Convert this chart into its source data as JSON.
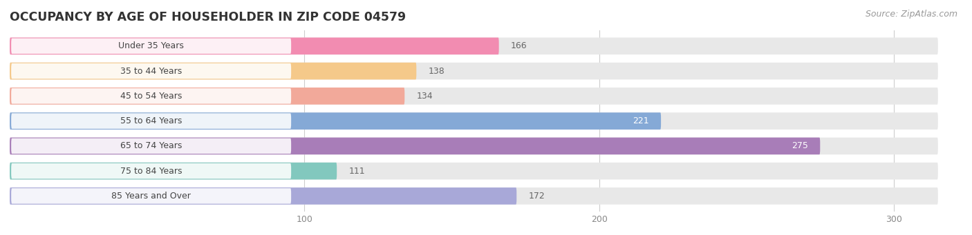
{
  "title": "OCCUPANCY BY AGE OF HOUSEHOLDER IN ZIP CODE 04579",
  "source": "Source: ZipAtlas.com",
  "categories": [
    "Under 35 Years",
    "35 to 44 Years",
    "45 to 54 Years",
    "55 to 64 Years",
    "65 to 74 Years",
    "75 to 84 Years",
    "85 Years and Over"
  ],
  "values": [
    166,
    138,
    134,
    221,
    275,
    111,
    172
  ],
  "bar_colors": [
    "#f28cb1",
    "#f5c98a",
    "#f2a99a",
    "#85a9d6",
    "#a87db8",
    "#82c8be",
    "#a8a8d8"
  ],
  "bar_bg_color": "#e8e8e8",
  "xlim": [
    0,
    315
  ],
  "xticks": [
    100,
    200,
    300
  ],
  "title_fontsize": 12.5,
  "source_fontsize": 9,
  "label_fontsize": 9,
  "value_fontsize": 9,
  "tick_fontsize": 9,
  "bg_color": "#ffffff",
  "bar_height": 0.68,
  "label_bg_color": "#ffffff",
  "value_inside_threshold": 200
}
